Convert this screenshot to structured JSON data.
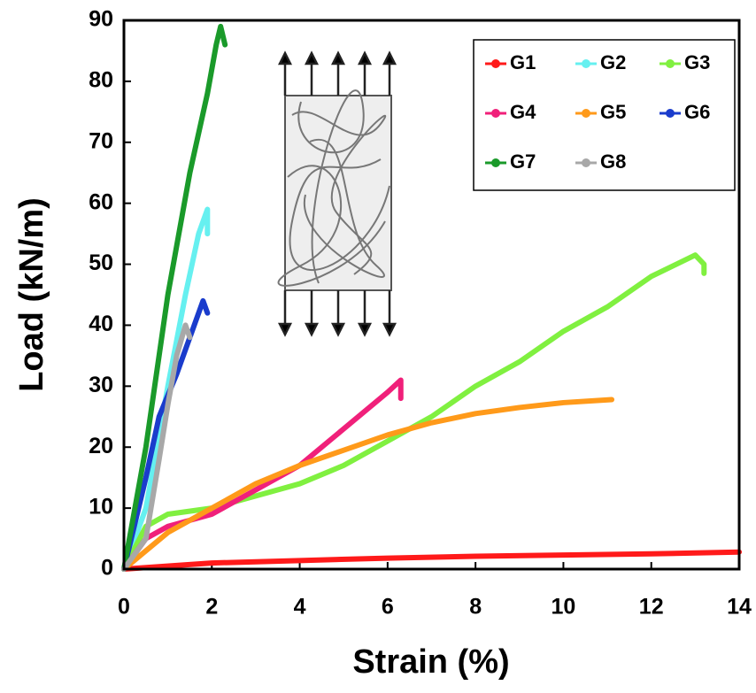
{
  "chart_data": {
    "type": "line",
    "x_label": "Strain (%)",
    "y_label": "Load (kN/m)",
    "xlim": [
      0,
      14
    ],
    "xticks": [
      0,
      2,
      4,
      6,
      8,
      10,
      12,
      14
    ],
    "ylim": [
      0,
      90
    ],
    "yticks": [
      0,
      10,
      20,
      30,
      40,
      50,
      60,
      70,
      80,
      90
    ],
    "grid": false,
    "legend": "upper right",
    "series": [
      {
        "name": "G1",
        "color": "#ff1a1a",
        "x": [
          0,
          2,
          4,
          6,
          8,
          10,
          12,
          14
        ],
        "values": [
          0,
          1,
          1.4,
          1.8,
          2.1,
          2.3,
          2.5,
          2.8
        ]
      },
      {
        "name": "G2",
        "color": "#66f0f0",
        "x": [
          0,
          0.5,
          1,
          1.4,
          1.7,
          1.9,
          1.9
        ],
        "values": [
          0,
          10,
          30,
          45,
          55,
          59,
          55
        ]
      },
      {
        "name": "G3",
        "color": "#80f040",
        "x": [
          0,
          0.5,
          1,
          2,
          3,
          4,
          5,
          6,
          7,
          8,
          9,
          10,
          11,
          12,
          13,
          13.2,
          13.2
        ],
        "values": [
          0,
          7,
          9,
          10,
          12,
          14,
          17,
          21,
          25,
          30,
          34,
          39,
          43,
          48,
          51.5,
          50,
          48.5
        ]
      },
      {
        "name": "G4",
        "color": "#f0207a",
        "x": [
          0,
          0.5,
          1,
          2,
          3,
          4,
          5,
          6,
          6.3,
          6.3
        ],
        "values": [
          0,
          5,
          7,
          9,
          13,
          17,
          23,
          29,
          31,
          28
        ]
      },
      {
        "name": "G5",
        "color": "#ff9a1a",
        "x": [
          0,
          0.5,
          1,
          2,
          3,
          4,
          5,
          6,
          7,
          8,
          9,
          10,
          11.1
        ],
        "values": [
          0,
          3,
          6,
          10,
          14,
          17,
          19.5,
          22,
          24,
          25.5,
          26.5,
          27.3,
          27.8
        ]
      },
      {
        "name": "G6",
        "color": "#1a3ccc",
        "x": [
          0,
          0.5,
          0.8,
          1.2,
          1.5,
          1.8,
          1.9
        ],
        "values": [
          0,
          15,
          25,
          32,
          38,
          44,
          42
        ]
      },
      {
        "name": "G7",
        "color": "#1a9a2a",
        "x": [
          0,
          0.5,
          1,
          1.5,
          1.9,
          2.1,
          2.2,
          2.3
        ],
        "values": [
          0,
          20,
          45,
          65,
          78,
          86,
          89,
          86
        ]
      },
      {
        "name": "G8",
        "color": "#a8a8a8",
        "x": [
          0,
          0.5,
          0.8,
          1,
          1.2,
          1.4,
          1.5
        ],
        "values": [
          0,
          5,
          18,
          27,
          35,
          40,
          38
        ]
      }
    ]
  }
}
